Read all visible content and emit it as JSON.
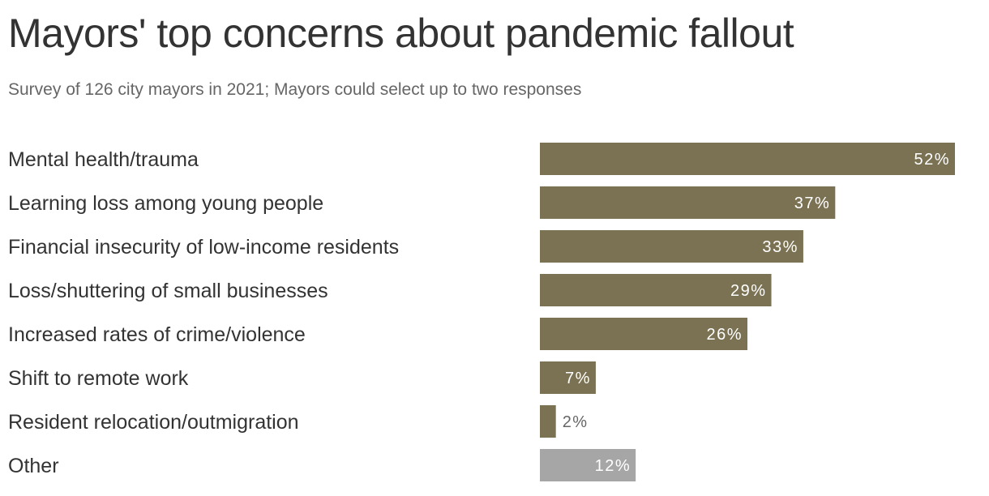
{
  "colors": {
    "bar_primary": "#7b7253",
    "bar_other": "#a6a6a6",
    "label_inside": "#ffffff",
    "label_outside": "#666666"
  },
  "chart_data": {
    "type": "bar",
    "orientation": "horizontal",
    "title": "Mayors' top concerns about pandemic fallout",
    "subtitle": "Survey of 126 city mayors in 2021; Mayors could select up to two responses",
    "categories": [
      "Mental health/trauma",
      "Learning loss among young people",
      "Financial insecurity of low-income residents",
      "Loss/shuttering of small businesses",
      "Increased rates of crime/violence",
      "Shift to remote work",
      "Resident relocation/outmigration",
      "Other"
    ],
    "values": [
      52,
      37,
      33,
      29,
      26,
      7,
      2,
      12
    ],
    "value_labels": [
      "52%",
      "37%",
      "33%",
      "29%",
      "26%",
      "7%",
      "2%",
      "12%"
    ],
    "xlim": [
      0,
      52
    ],
    "grid": false,
    "legend": "none"
  }
}
